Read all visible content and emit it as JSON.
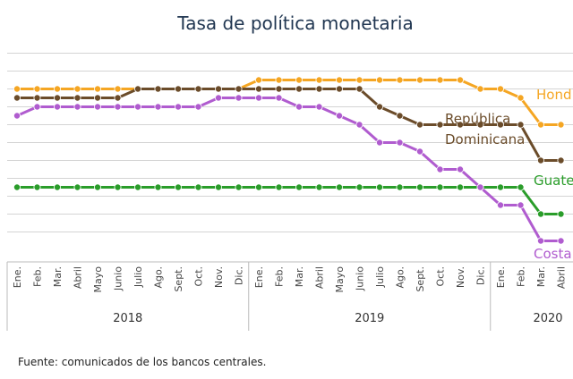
{
  "chart_data": {
    "type": "line",
    "title": "Tasa de política monetaria",
    "xlabel": "",
    "ylabel": "",
    "grid": true,
    "legend": "none",
    "categories": [
      "Ene.",
      "Feb.",
      "Mar.",
      "Abril",
      "Mayo",
      "Junio",
      "Julio",
      "Ago.",
      "Sept.",
      "Oct.",
      "Nov.",
      "Dic.",
      "Ene.",
      "Feb.",
      "Mar.",
      "Abril",
      "Mayo",
      "Junio",
      "Julio",
      "Ago.",
      "Sept.",
      "Oct.",
      "Nov.",
      "Dic.",
      "Ene.",
      "Feb.",
      "Mar.",
      "Abril"
    ],
    "years": [
      {
        "label": "2018",
        "start": 0,
        "end": 11
      },
      {
        "label": "2019",
        "start": 12,
        "end": 23
      },
      {
        "label": "2020",
        "start": 24,
        "end": 27
      }
    ],
    "ylim": [
      1,
      6.75
    ],
    "series": [
      {
        "name": "Honduras",
        "color": "#f5a623",
        "values": [
          5.5,
          5.5,
          5.5,
          5.5,
          5.5,
          5.5,
          5.5,
          5.5,
          5.5,
          5.5,
          5.5,
          5.5,
          5.75,
          5.75,
          5.75,
          5.75,
          5.75,
          5.75,
          5.75,
          5.75,
          5.75,
          5.75,
          5.75,
          5.5,
          5.5,
          5.25,
          4.5,
          4.5
        ]
      },
      {
        "name": "República Dominicana",
        "color": "#6b4c2a",
        "values": [
          5.25,
          5.25,
          5.25,
          5.25,
          5.25,
          5.25,
          5.5,
          5.5,
          5.5,
          5.5,
          5.5,
          5.5,
          5.5,
          5.5,
          5.5,
          5.5,
          5.5,
          5.5,
          5.0,
          4.75,
          4.5,
          4.5,
          4.5,
          4.5,
          4.5,
          4.5,
          3.5,
          3.5
        ]
      },
      {
        "name": "Guatemala",
        "color": "#2a9d2a",
        "values": [
          2.75,
          2.75,
          2.75,
          2.75,
          2.75,
          2.75,
          2.75,
          2.75,
          2.75,
          2.75,
          2.75,
          2.75,
          2.75,
          2.75,
          2.75,
          2.75,
          2.75,
          2.75,
          2.75,
          2.75,
          2.75,
          2.75,
          2.75,
          2.75,
          2.75,
          2.75,
          2.0,
          2.0
        ]
      },
      {
        "name": "Costa Rica",
        "color": "#b05ccf",
        "values": [
          4.75,
          5.0,
          5.0,
          5.0,
          5.0,
          5.0,
          5.0,
          5.0,
          5.0,
          5.0,
          5.25,
          5.25,
          5.25,
          5.25,
          5.0,
          5.0,
          4.75,
          4.5,
          4.0,
          4.0,
          3.75,
          3.25,
          3.25,
          2.75,
          2.25,
          2.25,
          1.25,
          1.25
        ]
      }
    ],
    "series_labels": [
      {
        "lines": [
          "Hond"
        ],
        "color": "#f5a623"
      },
      {
        "lines": [
          "República",
          "Dominicana"
        ],
        "color": "#6b4c2a"
      },
      {
        "lines": [
          "Guate"
        ],
        "color": "#2a9d2a"
      },
      {
        "lines": [
          "Costa"
        ],
        "color": "#b05ccf"
      }
    ]
  },
  "source_note": "Fuente: comunicados de los bancos centrales."
}
